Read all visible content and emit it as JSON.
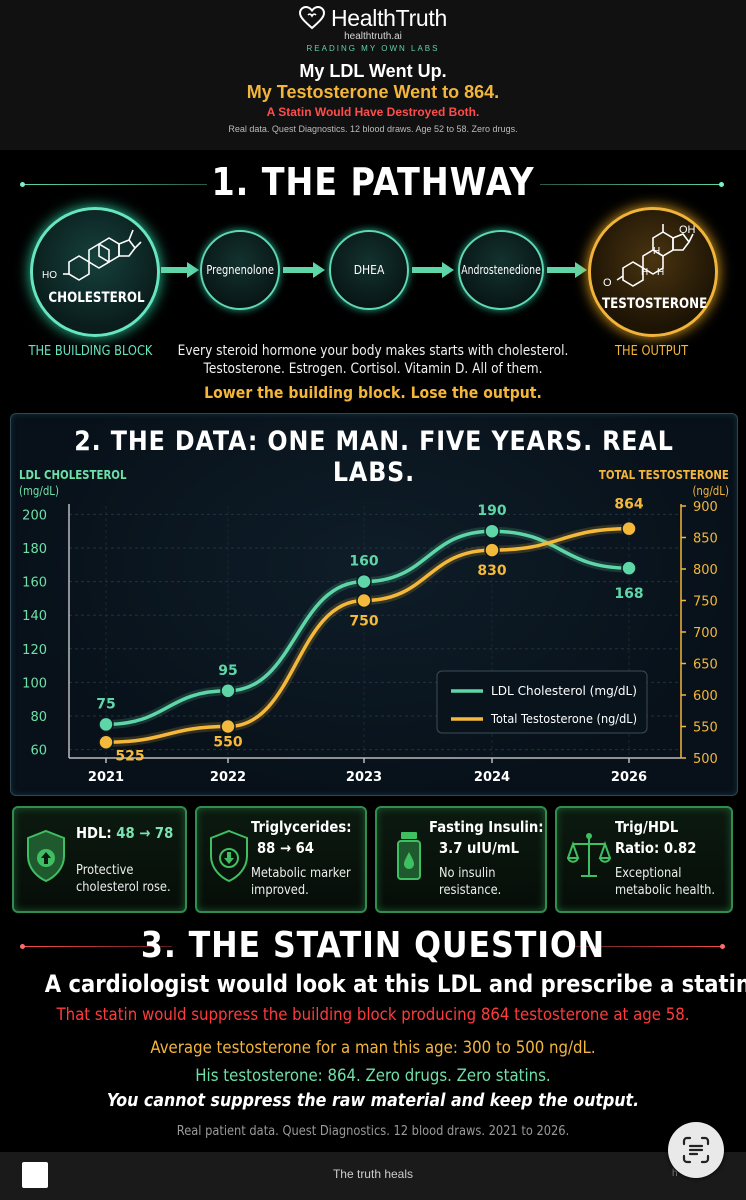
{
  "header": {
    "brand": "HealthTruth",
    "url": "healthtruth.ai",
    "tagline": "READING MY OWN LABS",
    "headline1": "My LDL Went Up.",
    "headline2": "My Testosterone Went to 864.",
    "headline3": "A Statin Would Have Destroyed Both.",
    "subline": "Real data. Quest Diagnostics. 12 blood draws. Age 52 to 58. Zero drugs."
  },
  "pathway": {
    "title": "1. THE PATHWAY",
    "nodes": {
      "cholesterol": "CHOLESTEROL",
      "pregnenolone": "Pregnenolone",
      "dhea": "DHEA",
      "androstenedione": "Androstenedione",
      "testosterone": "TESTOSTERONE"
    },
    "molecule_labels": {
      "ho": "HO",
      "oh": "OH",
      "o": "O",
      "h1": "H",
      "h2": "H",
      "h3": "H"
    },
    "left_caption": "THE BUILDING BLOCK",
    "right_caption": "THE OUTPUT",
    "desc1": "Every steroid hormone your body makes starts with cholesterol.",
    "desc2": "Testosterone. Estrogen. Cortisol. Vitamin D. All of them.",
    "highlight": "Lower the building block. Lose the output.",
    "colors": {
      "teal": "#66e5c0",
      "orange": "#f0b43a"
    }
  },
  "data_section": {
    "title": "2. THE DATA: ONE MAN. FIVE YEARS. REAL LABS.",
    "left_axis_title": "LDL CHOLESTEROL",
    "left_axis_unit": "(mg/dL)",
    "right_axis_title": "TOTAL TESTOSTERONE",
    "right_axis_unit": "(ng/dL)"
  },
  "chart_data": {
    "type": "line",
    "x": [
      "2021",
      "2022",
      "2023",
      "2024",
      "2026"
    ],
    "series": [
      {
        "name": "LDL Cholesterol (mg/dL)",
        "axis": "left",
        "color": "#5fd6a8",
        "values": [
          75,
          95,
          160,
          190,
          168
        ],
        "labels": [
          "75",
          "95",
          "160",
          "190",
          "168"
        ]
      },
      {
        "name": "Total Testosterone (ng/dL)",
        "axis": "right",
        "color": "#f4b93a",
        "values": [
          525,
          550,
          750,
          830,
          864
        ],
        "labels": [
          "525",
          "550",
          "750",
          "830",
          "864"
        ]
      }
    ],
    "y_left": {
      "range": [
        55,
        205
      ],
      "ticks": [
        "60",
        "80",
        "100",
        "120",
        "140",
        "160",
        "180",
        "200"
      ]
    },
    "y_right": {
      "range": [
        500,
        900
      ],
      "ticks": [
        "500",
        "550",
        "600",
        "650",
        "700",
        "750",
        "800",
        "850",
        "900"
      ]
    },
    "grid": true,
    "legend_position": "bottom-right"
  },
  "cards": [
    {
      "title": "HDL: ",
      "accent": "48 → 78",
      "title2": "",
      "sub1": "Protective",
      "sub2": "cholesterol rose.",
      "icon": "shield-up-icon"
    },
    {
      "title": "Triglycerides:",
      "accent": "",
      "title2": "88 → 64",
      "sub1": "Metabolic marker",
      "sub2": "improved.",
      "icon": "shield-down-icon"
    },
    {
      "title": "Fasting Insulin:",
      "accent": "",
      "title2": "3.7 uIU/mL",
      "sub1": "No insulin",
      "sub2": "resistance.",
      "icon": "vial-icon"
    },
    {
      "title": "Trig/HDL",
      "accent": "",
      "title2": "Ratio: 0.82",
      "sub1": "Exceptional",
      "sub2": "metabolic health.",
      "icon": "scales-icon"
    }
  ],
  "statin": {
    "title": "3. THE STATIN QUESTION",
    "line1": "A cardiologist would look at this LDL and prescribe a statin.",
    "line2": "That statin would suppress the building block producing 864 testosterone at age 58.",
    "line3": "Average testosterone for a man this age: 300 to 500 ng/dL.",
    "line4": "His testosterone: 864. Zero drugs. Zero statins.",
    "line5": "You cannot suppress the raw material and keep the output.",
    "footnote": "Real patient data. Quest Diagnostics. 12 blood draws. 2021 to 2026.",
    "colors": {
      "red": "#ff3b3b",
      "orange": "#f3b63a",
      "green": "#6ee0a8"
    }
  },
  "footer": {
    "text": "The truth heals",
    "small": "h"
  }
}
